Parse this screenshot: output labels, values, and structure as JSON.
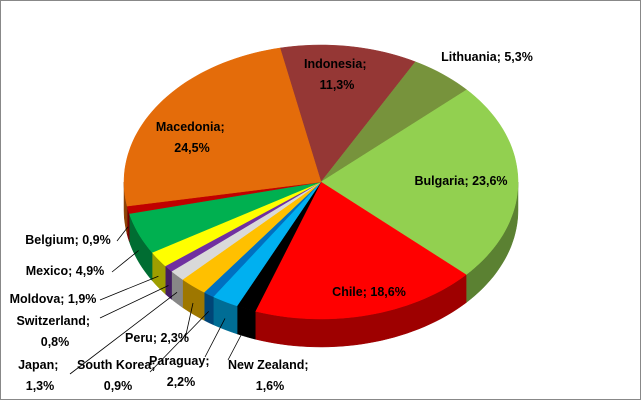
{
  "chart_data": {
    "type": "pie3d",
    "categories": [
      "Indonesia",
      "Lithuania",
      "Bulgaria",
      "Chile",
      "New Zealand",
      "Paraguay",
      "South Korea",
      "Peru",
      "Japan",
      "Switzerland",
      "Moldova",
      "Mexico",
      "Belgium",
      "Macedonia"
    ],
    "values": [
      11.3,
      5.3,
      23.6,
      18.6,
      1.6,
      2.2,
      0.9,
      2.3,
      1.3,
      0.8,
      1.9,
      4.9,
      0.9,
      24.5
    ],
    "value_labels": [
      "11,3%",
      "5,3%",
      "23,6%",
      "18,6%",
      "1,6%",
      "2,2%",
      "0,9%",
      "2,3%",
      "1,3%",
      "0,8%",
      "1,9%",
      "4,9%",
      "0,9%",
      "24,5%"
    ],
    "label_separator": "; ",
    "colors": [
      "#953735",
      "#77933c",
      "#92d050",
      "#ff0000",
      "#000000",
      "#00b0f0",
      "#0070c0",
      "#ffc000",
      "#d9d9d9",
      "#7030a0",
      "#ffff00",
      "#00b050",
      "#c00000",
      "#e46c0a"
    ]
  }
}
